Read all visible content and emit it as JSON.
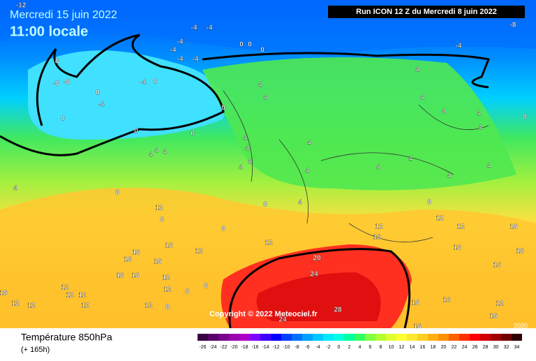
{
  "header": {
    "date": "Mercredi 15 juin 2022",
    "time": "11:00 locale",
    "run": "Run ICON 12 Z du Mercredi 8 juin 2022"
  },
  "copyright": "Copyright © 2022 Meteociel.fr",
  "corner_label": "2020",
  "footer": {
    "title": "Température 850hPa",
    "lead": "(+ 165h)"
  },
  "colorbar": {
    "values": [
      -26,
      -24,
      -22,
      -20,
      -18,
      -16,
      -14,
      -12,
      -10,
      -8,
      -6,
      -4,
      -2,
      0,
      2,
      4,
      6,
      8,
      10,
      12,
      14,
      16,
      18,
      20,
      22,
      24,
      26,
      28,
      30,
      32,
      34
    ],
    "colors": [
      "#3b0045",
      "#5a006a",
      "#7a0090",
      "#9a00b0",
      "#b000c8",
      "#8000ff",
      "#4000ff",
      "#0000ff",
      "#0040ff",
      "#0070ff",
      "#00a0ff",
      "#00c8ff",
      "#00e8ff",
      "#00ffe0",
      "#00ffa0",
      "#30ff60",
      "#80ff40",
      "#b0ff30",
      "#e0ff30",
      "#ffff30",
      "#ffe830",
      "#ffd020",
      "#ffb010",
      "#ff9000",
      "#ff6000",
      "#ff3000",
      "#ff0000",
      "#d00000",
      "#a00000",
      "#700000",
      "#300000"
    ]
  },
  "contour_labels": [
    -12,
    -8,
    -8,
    -8,
    -4,
    -4,
    -4,
    -4,
    -4,
    -4,
    -4,
    -4,
    -8,
    -4,
    0,
    0,
    0,
    0,
    0,
    0,
    0,
    0,
    0,
    4,
    4,
    4,
    4,
    4,
    8,
    4,
    4,
    4,
    4,
    4,
    4,
    4,
    4,
    4,
    4,
    4,
    4,
    4,
    4,
    4,
    4,
    8,
    8,
    4,
    8,
    12,
    8,
    8,
    12,
    12,
    12,
    12,
    16,
    16,
    16,
    16,
    16,
    16,
    12,
    16,
    16,
    16,
    16,
    12,
    20,
    24,
    16,
    28,
    24,
    16,
    12,
    12,
    12,
    16,
    12,
    12,
    12,
    12,
    8,
    8,
    8,
    12,
    12,
    16,
    16,
    16
  ]
}
